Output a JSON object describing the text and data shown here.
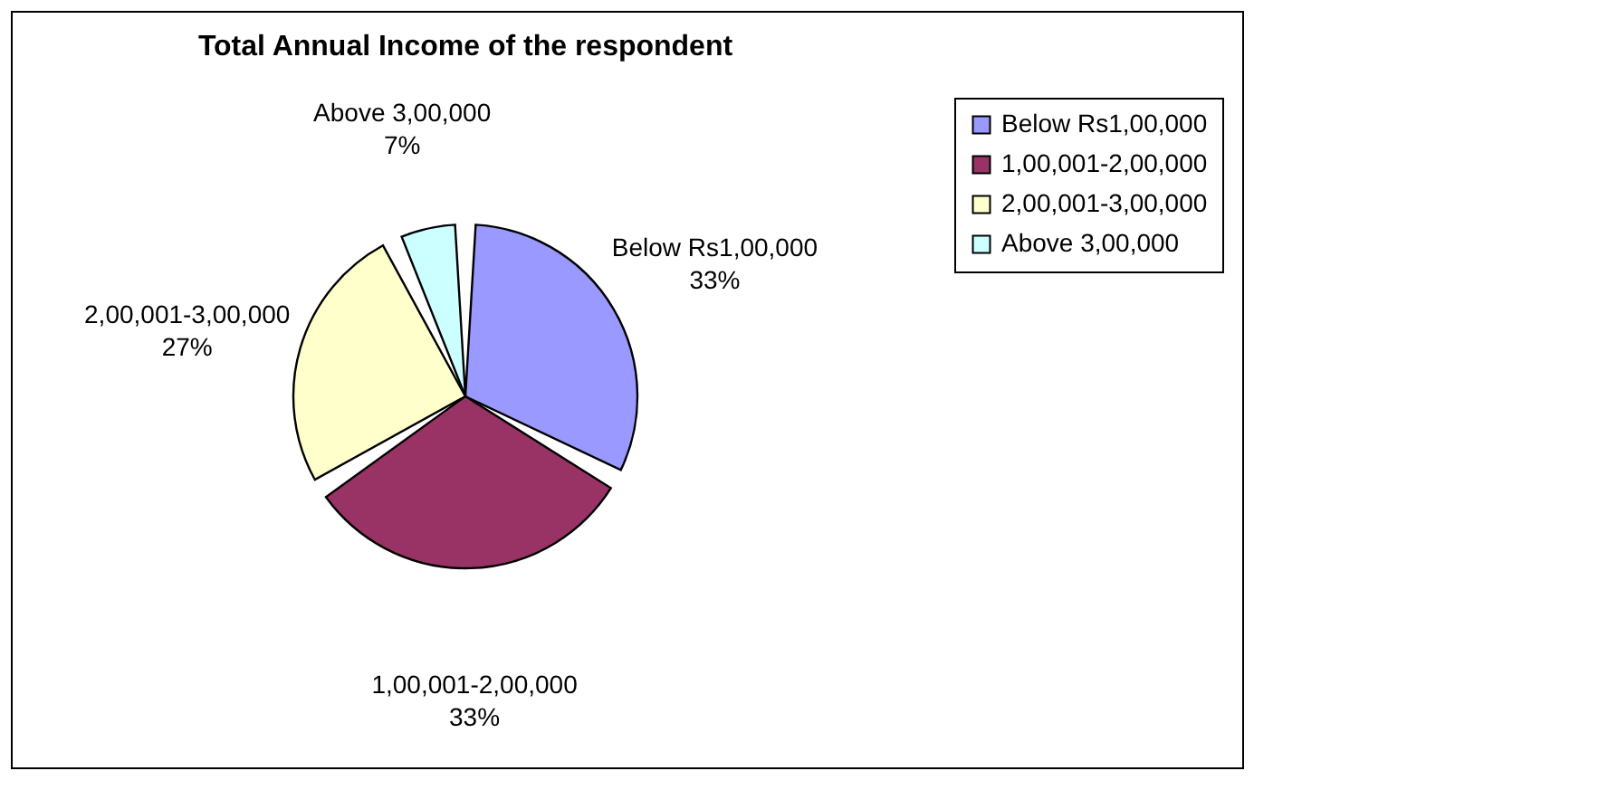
{
  "chart_data": {
    "type": "pie",
    "title": "Total Annual Income of the respondent",
    "categories": [
      "Below Rs1,00,000",
      "1,00,001-2,00,000",
      "2,00,001-3,00,000",
      "Above 3,00,000"
    ],
    "values": [
      33,
      33,
      27,
      7
    ],
    "colors": [
      "#9999ff",
      "#993366",
      "#ffffcc",
      "#ccffff"
    ],
    "value_labels": [
      "33%",
      "33%",
      "27%",
      "7%"
    ],
    "legend": "right"
  }
}
